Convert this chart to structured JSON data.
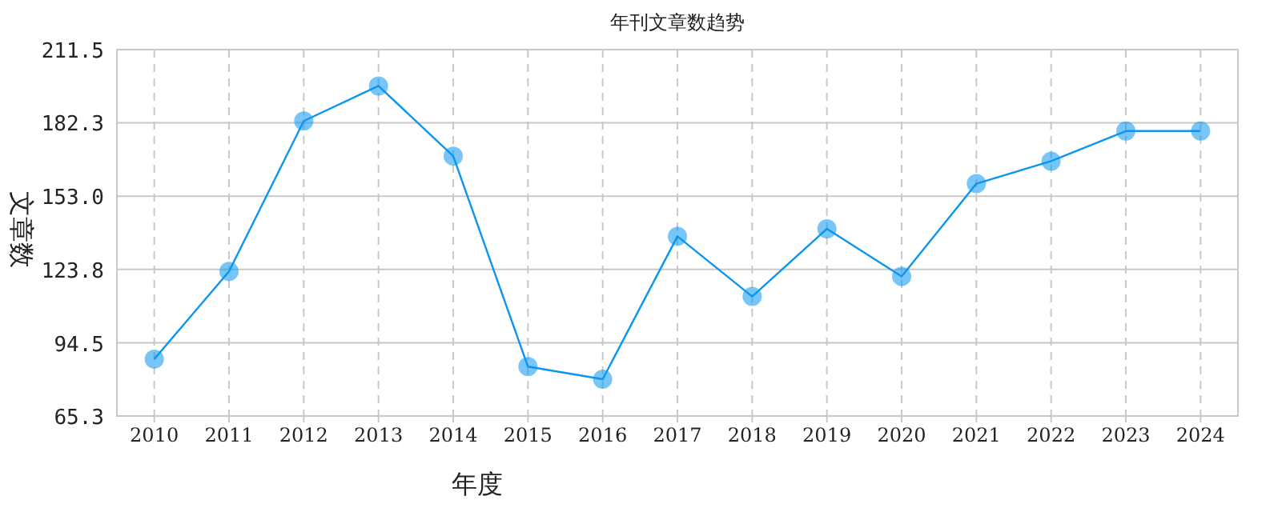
{
  "chart_data": {
    "type": "line",
    "title": "年刊文章数趋势",
    "xlabel": "年度",
    "ylabel": "文章数",
    "categories": [
      "2010",
      "2011",
      "2012",
      "2013",
      "2014",
      "2015",
      "2016",
      "2017",
      "2018",
      "2019",
      "2020",
      "2021",
      "2022",
      "2023",
      "2024"
    ],
    "series": [
      {
        "color": "#0a96f0",
        "values": [
          88,
          123,
          183,
          197,
          169,
          85,
          80,
          137,
          113,
          140,
          121,
          158,
          167,
          179,
          179
        ]
      }
    ],
    "ylim": [
      65.3,
      211.5
    ],
    "yticks": [
      65.3,
      94.5,
      123.8,
      {
        "value": 153,
        "label": "153.0"
      },
      182.3,
      211.5
    ],
    "grid": true,
    "marker": "circle",
    "line_style": "solid"
  }
}
